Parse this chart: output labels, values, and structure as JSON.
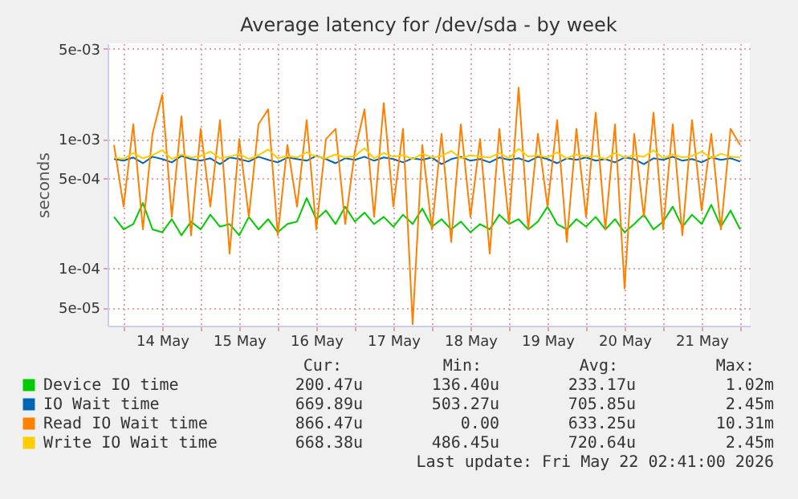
{
  "chart_data": {
    "type": "line",
    "title": "Average latency for /dev/sda - by week",
    "ylabel": "seconds",
    "log": "y",
    "grid": true,
    "legend": "bottom",
    "marker": "none",
    "line_style": "solid",
    "xlim": [
      "2026-05-13T19:00",
      "2026-05-22T03:00"
    ],
    "xticks": [
      {
        "value": "2026-05-14T00:00",
        "label": null
      },
      {
        "value": "2026-05-14T12:00",
        "label": "14 May"
      },
      {
        "value": "2026-05-15T00:00",
        "label": null
      },
      {
        "value": "2026-05-15T12:00",
        "label": "15 May"
      },
      {
        "value": "2026-05-16T00:00",
        "label": null
      },
      {
        "value": "2026-05-16T12:00",
        "label": "16 May"
      },
      {
        "value": "2026-05-17T00:00",
        "label": null
      },
      {
        "value": "2026-05-17T12:00",
        "label": "17 May"
      },
      {
        "value": "2026-05-18T00:00",
        "label": null
      },
      {
        "value": "2026-05-18T12:00",
        "label": "18 May"
      },
      {
        "value": "2026-05-19T00:00",
        "label": null
      },
      {
        "value": "2026-05-19T12:00",
        "label": "19 May"
      },
      {
        "value": "2026-05-20T00:00",
        "label": null
      },
      {
        "value": "2026-05-20T12:00",
        "label": "20 May"
      },
      {
        "value": "2026-05-21T00:00",
        "label": null
      },
      {
        "value": "2026-05-21T12:00",
        "label": "21 May"
      },
      {
        "value": "2026-05-22T00:00",
        "label": null
      }
    ],
    "ylim": [
      3.6e-05,
      0.0055
    ],
    "yticks": [
      {
        "value": 5e-05,
        "label": "5e-05"
      },
      {
        "value": 0.0001,
        "label": "1e-04"
      },
      {
        "value": 0.0005,
        "label": "5e-04"
      },
      {
        "value": 0.001,
        "label": "1e-03"
      },
      {
        "value": 0.005,
        "label": "5e-03"
      }
    ],
    "x": [
      "2026-05-13T21:00",
      "2026-05-14T00:00",
      "2026-05-14T03:00",
      "2026-05-14T06:00",
      "2026-05-14T09:00",
      "2026-05-14T12:00",
      "2026-05-14T15:00",
      "2026-05-14T18:00",
      "2026-05-14T21:00",
      "2026-05-15T00:00",
      "2026-05-15T03:00",
      "2026-05-15T06:00",
      "2026-05-15T09:00",
      "2026-05-15T12:00",
      "2026-05-15T15:00",
      "2026-05-15T18:00",
      "2026-05-15T21:00",
      "2026-05-16T00:00",
      "2026-05-16T03:00",
      "2026-05-16T06:00",
      "2026-05-16T09:00",
      "2026-05-16T12:00",
      "2026-05-16T15:00",
      "2026-05-16T18:00",
      "2026-05-16T21:00",
      "2026-05-17T00:00",
      "2026-05-17T03:00",
      "2026-05-17T06:00",
      "2026-05-17T09:00",
      "2026-05-17T12:00",
      "2026-05-17T15:00",
      "2026-05-17T18:00",
      "2026-05-17T21:00",
      "2026-05-18T00:00",
      "2026-05-18T03:00",
      "2026-05-18T06:00",
      "2026-05-18T09:00",
      "2026-05-18T12:00",
      "2026-05-18T15:00",
      "2026-05-18T18:00",
      "2026-05-18T21:00",
      "2026-05-19T00:00",
      "2026-05-19T03:00",
      "2026-05-19T06:00",
      "2026-05-19T09:00",
      "2026-05-19T12:00",
      "2026-05-19T15:00",
      "2026-05-19T18:00",
      "2026-05-19T21:00",
      "2026-05-20T00:00",
      "2026-05-20T03:00",
      "2026-05-20T06:00",
      "2026-05-20T09:00",
      "2026-05-20T12:00",
      "2026-05-20T15:00",
      "2026-05-20T18:00",
      "2026-05-20T21:00",
      "2026-05-21T00:00",
      "2026-05-21T03:00",
      "2026-05-21T06:00",
      "2026-05-21T09:00",
      "2026-05-21T12:00",
      "2026-05-21T15:00",
      "2026-05-21T18:00",
      "2026-05-21T21:00",
      "2026-05-22T00:00"
    ],
    "series": [
      {
        "name": "Device IO time",
        "color": "#00cc00",
        "values": [
          0.00025,
          0.0002,
          0.00022,
          0.00032,
          0.0002,
          0.00019,
          0.00024,
          0.00018,
          0.00023,
          0.0002,
          0.00026,
          0.00021,
          0.00022,
          0.00018,
          0.00025,
          0.0002,
          0.00024,
          0.00019,
          0.00022,
          0.00023,
          0.00035,
          0.00024,
          0.00028,
          0.00022,
          0.0003,
          0.00023,
          0.00027,
          0.00022,
          0.00025,
          0.00021,
          0.00026,
          0.00022,
          0.00029,
          0.00021,
          0.00024,
          0.0002,
          0.00023,
          0.00019,
          0.00022,
          0.0002,
          0.00026,
          0.00022,
          0.00024,
          0.0002,
          0.00023,
          0.0003,
          0.00022,
          0.0002,
          0.00024,
          0.00021,
          0.00025,
          0.0002,
          0.00024,
          0.00019,
          0.00022,
          0.00026,
          0.0002,
          0.00023,
          0.0003,
          0.00021,
          0.00026,
          0.00022,
          0.00031,
          0.00021,
          0.00028,
          0.0002
        ]
      },
      {
        "name": "IO Wait time",
        "color": "#0066b3",
        "values": [
          0.0007,
          0.00068,
          0.00072,
          0.00065,
          0.00073,
          0.0007,
          0.00066,
          0.00074,
          0.0007,
          0.00068,
          0.00071,
          0.00064,
          0.00072,
          0.0007,
          0.00067,
          0.00073,
          0.00069,
          0.00066,
          0.00072,
          0.0007,
          0.00068,
          0.00074,
          0.0007,
          0.00065,
          0.00071,
          0.00069,
          0.00073,
          0.00068,
          0.00072,
          0.0007,
          0.00066,
          0.00071,
          0.00069,
          0.00072,
          0.00064,
          0.0007,
          0.00073,
          0.00068,
          0.0007,
          0.00066,
          0.00072,
          0.00069,
          0.00071,
          0.00067,
          0.00073,
          0.0007,
          0.00065,
          0.00071,
          0.00069,
          0.00072,
          0.00068,
          0.0007,
          0.00066,
          0.00072,
          0.0007,
          0.00064,
          0.00071,
          0.00069,
          0.00073,
          0.00068,
          0.0007,
          0.00066,
          0.00072,
          0.00069,
          0.00071,
          0.00067
        ]
      },
      {
        "name": "Read IO Wait time",
        "color": "#ff8000",
        "values": [
          0.0009,
          0.0003,
          0.0013,
          0.0002,
          0.0011,
          0.0022,
          0.00025,
          0.0015,
          0.00018,
          0.0012,
          0.0003,
          0.0014,
          0.00013,
          0.001,
          0.00025,
          0.0013,
          0.0017,
          0.00018,
          0.0009,
          0.0003,
          0.0014,
          0.0002,
          0.001,
          0.0012,
          0.00022,
          0.0008,
          0.0017,
          0.00025,
          0.0019,
          0.0003,
          0.0012,
          3.7e-05,
          0.0009,
          0.0002,
          0.0011,
          0.00016,
          0.0013,
          0.00025,
          0.001,
          0.00013,
          0.0012,
          0.00022,
          0.0025,
          0.0002,
          0.0011,
          0.0003,
          0.0014,
          0.00016,
          0.0012,
          0.00025,
          0.0016,
          0.0002,
          0.0013,
          7e-05,
          0.0011,
          0.00025,
          0.0016,
          0.0002,
          0.0013,
          0.00018,
          0.0014,
          0.00028,
          0.0011,
          0.0002,
          0.0012,
          0.0009
        ]
      },
      {
        "name": "Write IO Wait time",
        "color": "#ffcc00",
        "values": [
          0.00072,
          0.0007,
          0.00078,
          0.00071,
          0.00075,
          0.00082,
          0.0007,
          0.00076,
          0.00072,
          0.00074,
          0.0008,
          0.00071,
          0.00073,
          0.00077,
          0.0007,
          0.00075,
          0.00083,
          0.00071,
          0.00074,
          0.00072,
          0.00079,
          0.00073,
          0.00071,
          0.00076,
          0.00072,
          0.00074,
          0.00085,
          0.00071,
          0.00078,
          0.00073,
          0.00075,
          0.0007,
          0.00077,
          0.00072,
          0.00074,
          0.00081,
          0.00071,
          0.00075,
          0.00073,
          0.00072,
          0.00078,
          0.00071,
          0.00084,
          0.00073,
          0.00075,
          0.00072,
          0.00079,
          0.00071,
          0.00076,
          0.00073,
          0.00074,
          0.0007,
          0.00078,
          0.00072,
          0.00075,
          0.00073,
          0.00082,
          0.00071,
          0.00076,
          0.00072,
          0.00074,
          0.0008,
          0.00071,
          0.00077,
          0.00073,
          0.00072
        ]
      }
    ],
    "annotations": [
      "Cur:",
      "Min:",
      "Avg:",
      "Max:",
      "200.47u",
      "136.40u",
      "233.17u",
      "1.02m",
      "669.89u",
      "503.27u",
      "705.85u",
      "2.45m",
      "866.47u",
      "0.00",
      "633.25u",
      "10.31m",
      "668.38u",
      "486.45u",
      "720.64u",
      "2.45m",
      "Last update: Fri May 22 02:41:00 2026"
    ]
  }
}
